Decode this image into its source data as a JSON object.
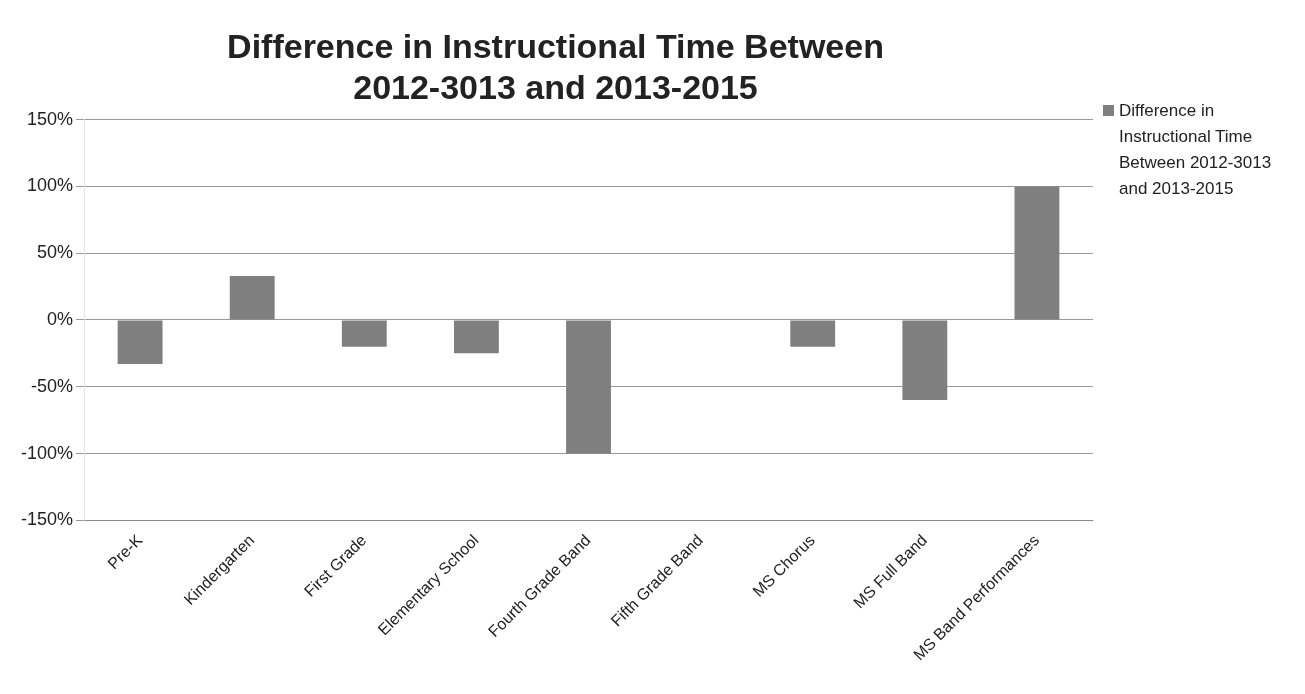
{
  "chart_data": {
    "type": "bar",
    "title": "Difference in Instructional Time Between 2012-3013 and 2013-2015",
    "categories": [
      "Pre-K",
      "Kindergarten",
      "First Grade",
      "Elementary School",
      "Fourth Grade Band",
      "Fifth Grade Band",
      "MS Chorus",
      "MS Full Band",
      "MS Band Performances"
    ],
    "series": [
      {
        "name": "Difference in Instructional Time Between 2012-3013 and 2013-2015",
        "color": "#7f7f7f",
        "values": [
          -33,
          33,
          -20,
          -25,
          -100,
          0,
          -20,
          -60,
          100
        ]
      }
    ],
    "ylim": [
      -150,
      150
    ],
    "yticks": [
      {
        "value": -150,
        "label": "-150%"
      },
      {
        "value": -100,
        "label": "-100%"
      },
      {
        "value": -50,
        "label": "-50%"
      },
      {
        "value": 0,
        "label": "0%"
      },
      {
        "value": 50,
        "label": "50%"
      },
      {
        "value": 100,
        "label": "100%"
      },
      {
        "value": 150,
        "label": "150%"
      }
    ],
    "grid": "y",
    "legend": "right"
  }
}
